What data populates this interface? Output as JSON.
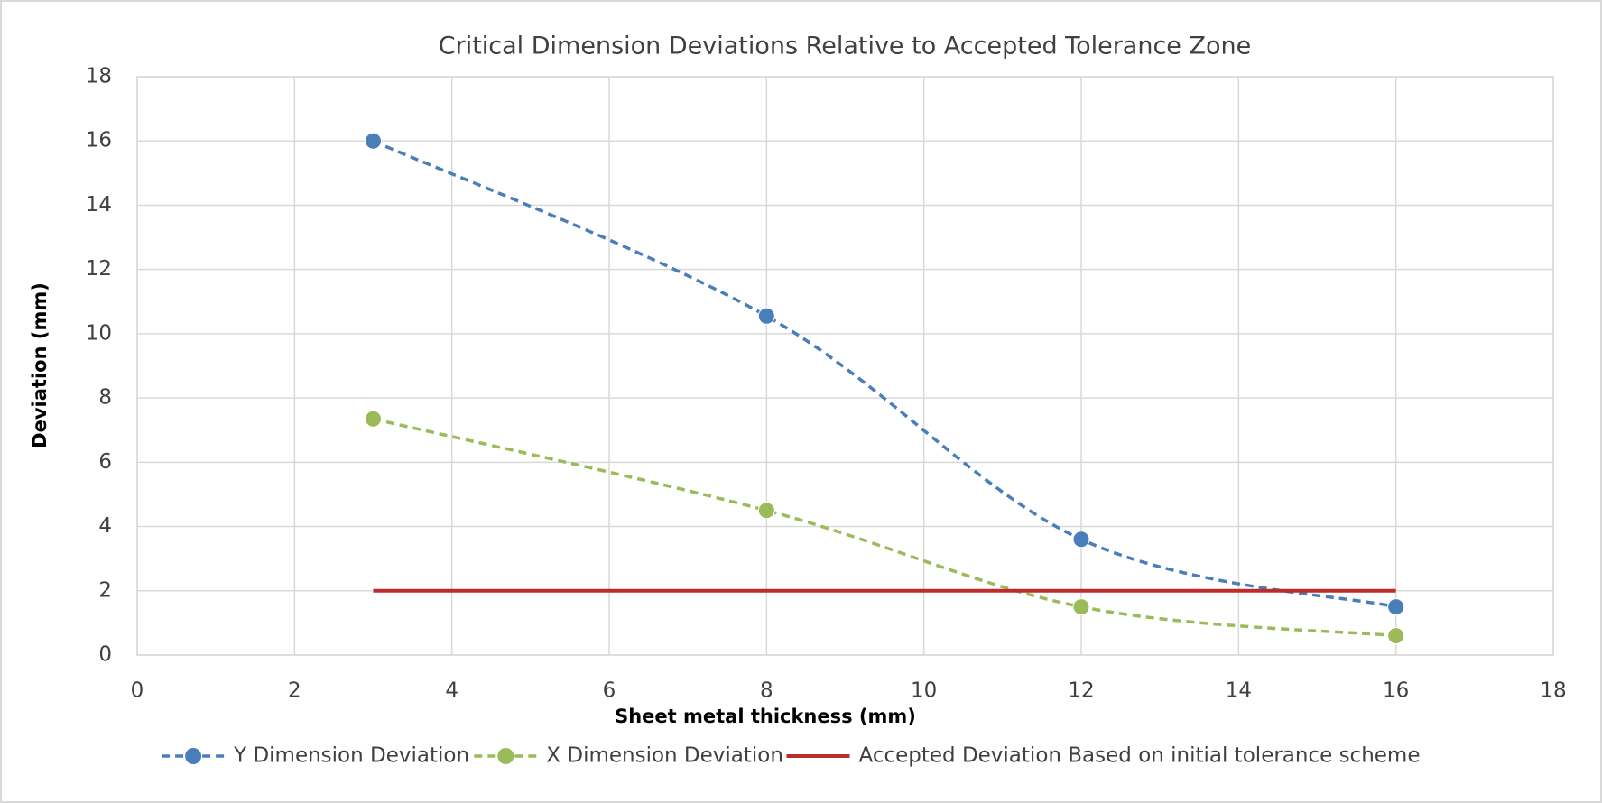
{
  "chart_data": {
    "type": "line",
    "title": "Critical Dimension Deviations Relative to Accepted Tolerance Zone",
    "x_label": "Sheet metal thickness (mm)",
    "y_label": "Deviation (mm)",
    "xlim": [
      0,
      18
    ],
    "xticks": [
      0,
      2,
      4,
      6,
      8,
      10,
      12,
      14,
      16,
      18
    ],
    "ylim": [
      0,
      18
    ],
    "yticks": [
      0,
      2,
      4,
      6,
      8,
      10,
      12,
      14,
      16,
      18
    ],
    "grid": true,
    "legend": "bottom",
    "series": [
      {
        "name": "Y Dimension Deviation",
        "color": "#4a7ebb",
        "style": "dashed",
        "marker": true,
        "smooth": true,
        "x": [
          3,
          8,
          12,
          16
        ],
        "values": [
          16,
          10.55,
          3.6,
          1.5
        ]
      },
      {
        "name": "X Dimension Deviation",
        "color": "#9bbb59",
        "style": "dashed",
        "marker": true,
        "smooth": true,
        "x": [
          3,
          8,
          12,
          16
        ],
        "values": [
          7.35,
          4.5,
          1.5,
          0.6
        ]
      },
      {
        "name": "Accepted Deviation Based on initial tolerance scheme",
        "color": "#be2b2b",
        "style": "solid",
        "marker": false,
        "smooth": false,
        "x": [
          3,
          16
        ],
        "values": [
          2,
          2
        ]
      }
    ]
  }
}
